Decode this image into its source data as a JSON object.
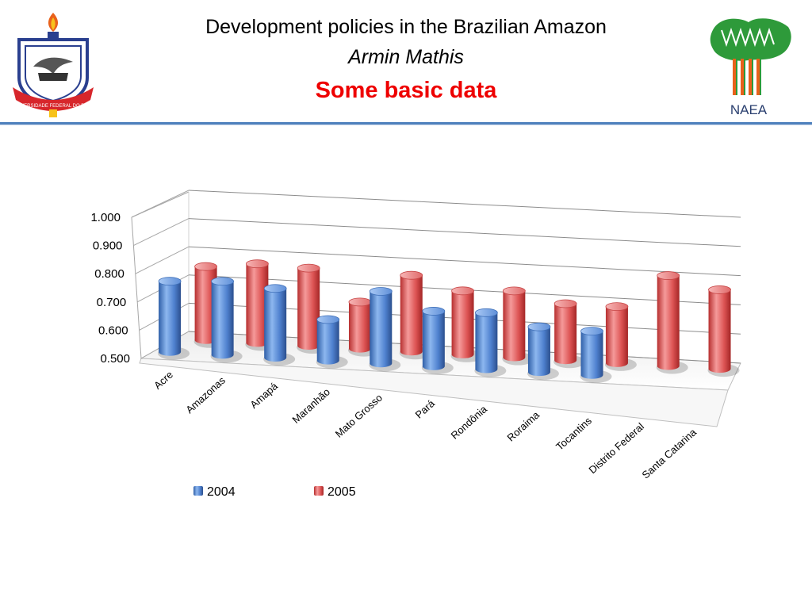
{
  "header": {
    "title": "Development policies in the Brazilian Amazon",
    "author": "Armin Mathis",
    "subtitle": "Some basic data",
    "left_logo_text": "UNIVERSIDADE FEDERAL DO PARÁ",
    "right_logo_text": "NAEA"
  },
  "colors": {
    "accent_rule": "#4f81bd",
    "subtitle": "#ee0000",
    "series_2004": "#4f81bd",
    "series_2005": "#e05555"
  },
  "chart_data": {
    "type": "bar",
    "style": "3d-cylinder",
    "categories": [
      "Acre",
      "Amazonas",
      "Amapá",
      "Maranhão",
      "Mato Grosso",
      "Pará",
      "Rondônia",
      "Roraima",
      "Tocantins",
      "Distrito Federal",
      "Santa Catarina"
    ],
    "series": [
      {
        "name": "2004",
        "values": [
          0.75,
          0.76,
          0.745,
          0.645,
          0.755,
          0.695,
          0.7,
          0.66,
          0.655,
          null,
          null
        ]
      },
      {
        "name": "2005",
        "values": [
          0.76,
          0.78,
          0.775,
          0.665,
          0.77,
          0.725,
          0.735,
          0.7,
          0.7,
          0.82,
          0.78
        ]
      }
    ],
    "ylim": [
      0.5,
      1.0
    ],
    "yticks": [
      "0.500",
      "0.600",
      "0.700",
      "0.800",
      "0.900",
      "1.000"
    ],
    "grid": true,
    "legend_position": "bottom"
  }
}
